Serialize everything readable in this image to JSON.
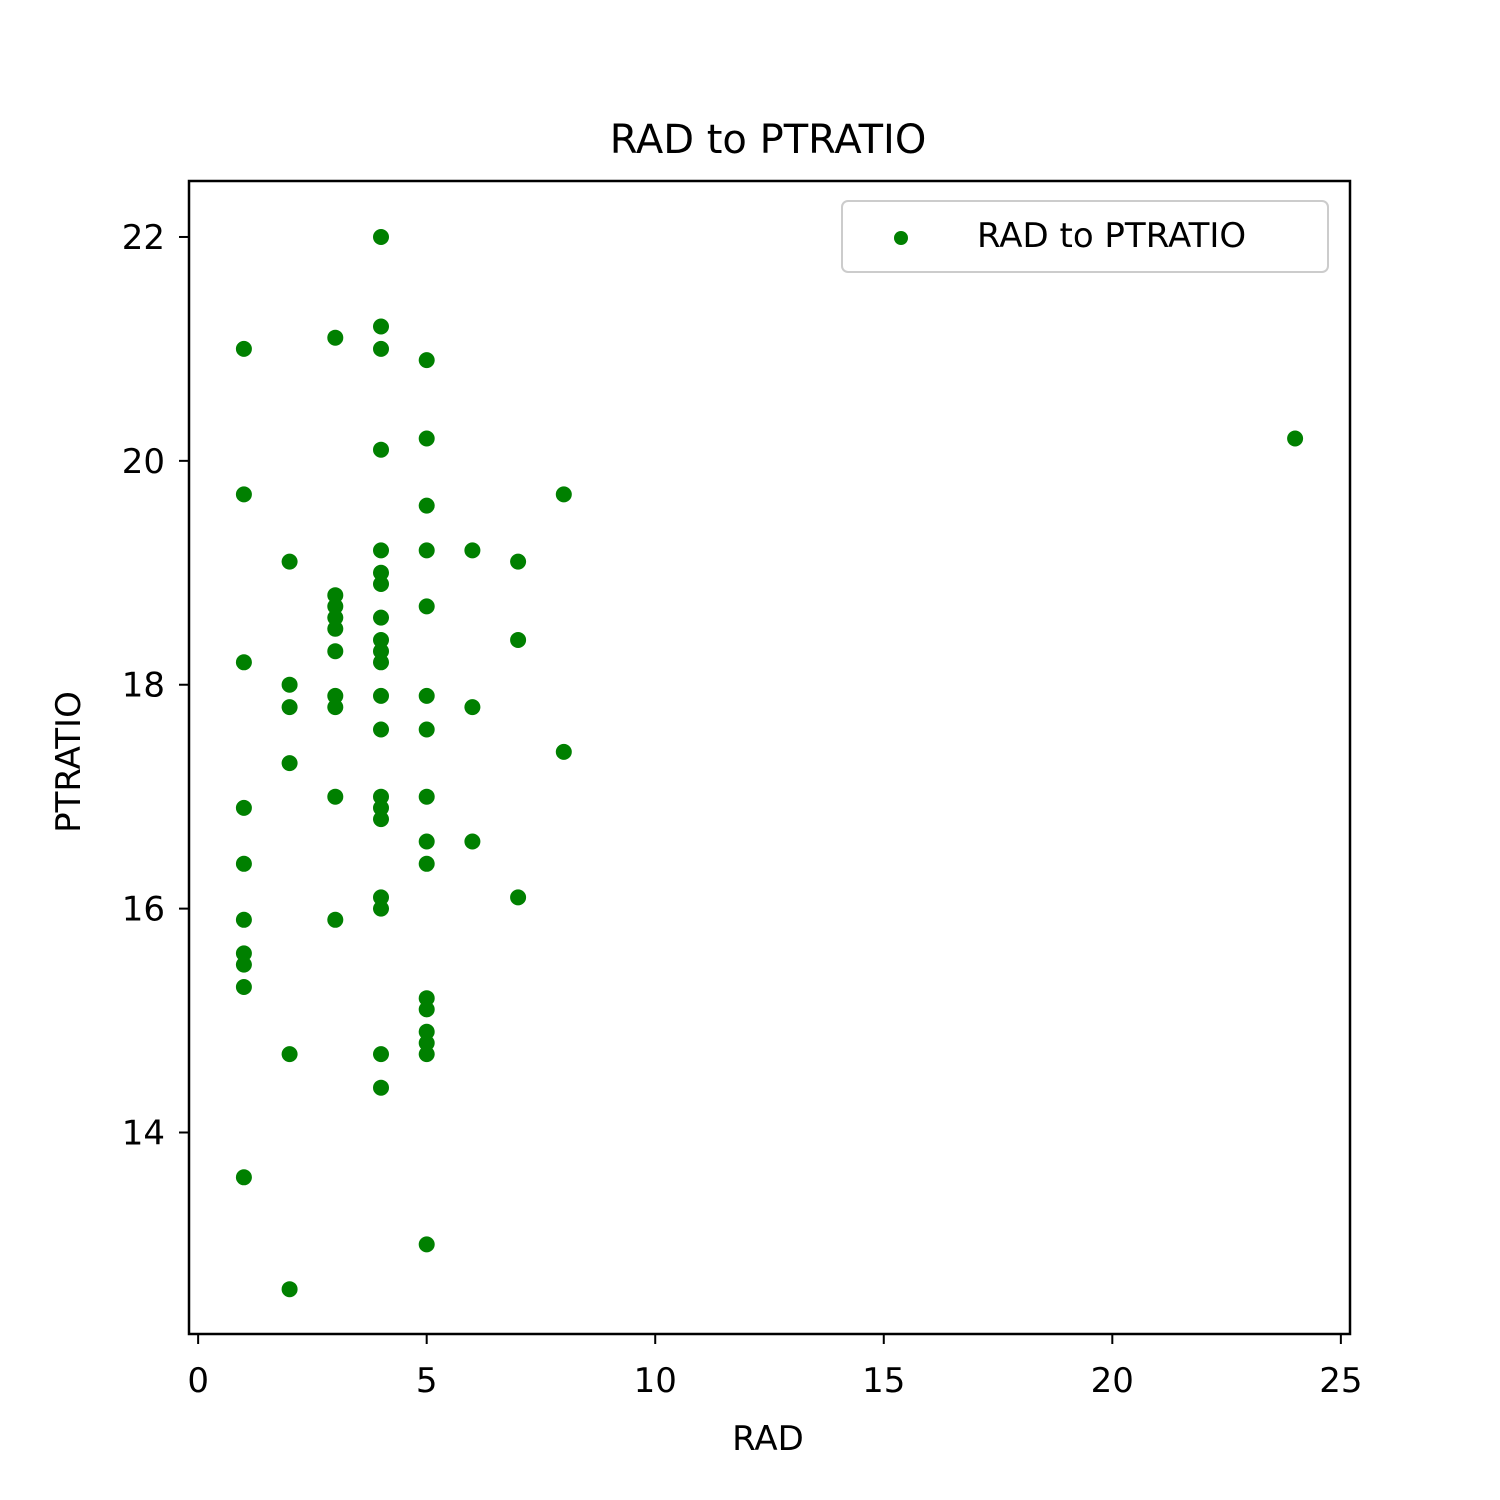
{
  "chart_data": {
    "type": "scatter",
    "title": "RAD to PTRATIO",
    "xlabel": "RAD",
    "ylabel": "PTRATIO",
    "xlim": [
      -0.2,
      25.2
    ],
    "ylim": [
      12.2,
      22.5
    ],
    "xticks": [
      "0",
      "5",
      "10",
      "15",
      "20",
      "25"
    ],
    "yticks": [
      "14",
      "16",
      "18",
      "20",
      "22"
    ],
    "grid": false,
    "legend_position": "top-right",
    "series": [
      {
        "name": "RAD to PTRATIO",
        "color": "#008000",
        "points": [
          [
            1,
            21.0
          ],
          [
            1,
            19.7
          ],
          [
            1,
            18.2
          ],
          [
            1,
            16.9
          ],
          [
            1,
            16.4
          ],
          [
            1,
            15.9
          ],
          [
            1,
            15.6
          ],
          [
            1,
            15.5
          ],
          [
            1,
            15.3
          ],
          [
            1,
            13.6
          ],
          [
            2,
            19.1
          ],
          [
            2,
            18.0
          ],
          [
            2,
            17.8
          ],
          [
            2,
            17.3
          ],
          [
            2,
            14.7
          ],
          [
            2,
            12.6
          ],
          [
            3,
            21.1
          ],
          [
            3,
            18.8
          ],
          [
            3,
            18.7
          ],
          [
            3,
            18.6
          ],
          [
            3,
            18.5
          ],
          [
            3,
            18.3
          ],
          [
            3,
            17.9
          ],
          [
            3,
            17.8
          ],
          [
            3,
            17.0
          ],
          [
            3,
            15.9
          ],
          [
            4,
            22.0
          ],
          [
            4,
            21.2
          ],
          [
            4,
            21.0
          ],
          [
            4,
            20.1
          ],
          [
            4,
            19.2
          ],
          [
            4,
            19.0
          ],
          [
            4,
            18.9
          ],
          [
            4,
            18.6
          ],
          [
            4,
            18.4
          ],
          [
            4,
            18.3
          ],
          [
            4,
            18.2
          ],
          [
            4,
            17.9
          ],
          [
            4,
            17.6
          ],
          [
            4,
            17.0
          ],
          [
            4,
            16.9
          ],
          [
            4,
            16.8
          ],
          [
            4,
            16.1
          ],
          [
            4,
            16.0
          ],
          [
            4,
            14.7
          ],
          [
            4,
            14.4
          ],
          [
            5,
            20.9
          ],
          [
            5,
            20.2
          ],
          [
            5,
            19.6
          ],
          [
            5,
            19.2
          ],
          [
            5,
            18.7
          ],
          [
            5,
            17.9
          ],
          [
            5,
            17.6
          ],
          [
            5,
            17.0
          ],
          [
            5,
            16.6
          ],
          [
            5,
            16.4
          ],
          [
            5,
            15.2
          ],
          [
            5,
            15.1
          ],
          [
            5,
            14.9
          ],
          [
            5,
            14.8
          ],
          [
            5,
            14.7
          ],
          [
            5,
            13.0
          ],
          [
            6,
            19.2
          ],
          [
            6,
            17.8
          ],
          [
            6,
            16.6
          ],
          [
            7,
            19.1
          ],
          [
            7,
            18.4
          ],
          [
            7,
            16.1
          ],
          [
            8,
            19.7
          ],
          [
            8,
            17.4
          ],
          [
            24,
            20.2
          ]
        ]
      }
    ]
  }
}
